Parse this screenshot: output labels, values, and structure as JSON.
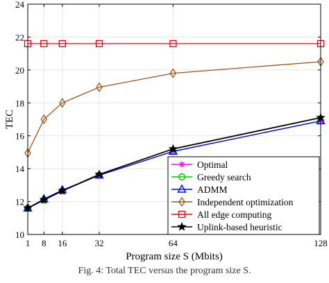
{
  "caption": "Fig. 4: Total TEC versus the program size S.",
  "chart_data": {
    "type": "line",
    "xlabel": "Program size S (Mbits)",
    "ylabel": "TEC",
    "x": [
      1,
      8,
      16,
      32,
      64,
      128
    ],
    "xticks": [
      "1",
      "8",
      "16",
      "32",
      "64",
      "128"
    ],
    "ylim": [
      10,
      24
    ],
    "yticks": [
      10,
      12,
      14,
      16,
      18,
      20,
      22,
      24
    ],
    "grid": true,
    "legend_position": "bottom-right",
    "series": [
      {
        "name": "Optimal",
        "color": "#ff00ff",
        "marker": "asterisk",
        "values": [
          11.6,
          12.1,
          12.65,
          13.6,
          15.05,
          16.9
        ]
      },
      {
        "name": "Greedy search",
        "color": "#00cc00",
        "marker": "circle",
        "values": [
          11.6,
          12.1,
          12.65,
          13.6,
          15.05,
          16.9
        ]
      },
      {
        "name": "ADMM",
        "color": "#0000ff",
        "marker": "triangle",
        "values": [
          11.6,
          12.15,
          12.7,
          13.6,
          15.05,
          16.9
        ]
      },
      {
        "name": "Independent optimization",
        "color": "#a0521d",
        "marker": "diamond",
        "values": [
          14.95,
          17.0,
          18.0,
          18.95,
          19.8,
          20.5
        ]
      },
      {
        "name": "All edge computing",
        "color": "#e8000b",
        "marker": "square",
        "values": [
          21.6,
          21.6,
          21.6,
          21.6,
          21.6,
          21.6
        ]
      },
      {
        "name": "Uplink-based heuristic",
        "color": "#000000",
        "marker": "star",
        "values": [
          11.6,
          12.1,
          12.65,
          13.65,
          15.2,
          17.1
        ]
      }
    ]
  }
}
